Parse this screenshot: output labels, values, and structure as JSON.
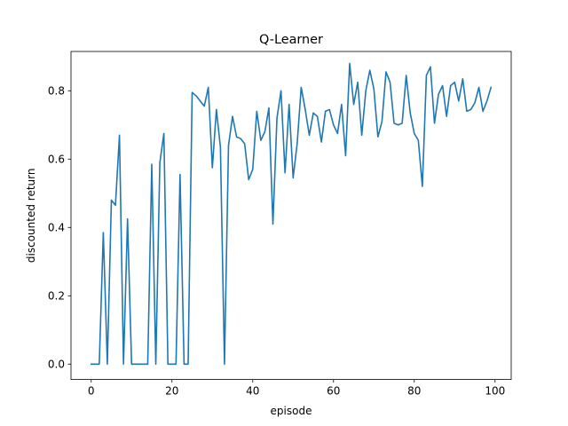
{
  "chart_data": {
    "type": "line",
    "title": "Q-Learner",
    "xlabel": "episode",
    "ylabel": "discounted return",
    "xlim": [
      -5,
      104
    ],
    "ylim": [
      -0.045,
      0.915
    ],
    "xticks": [
      0,
      20,
      40,
      60,
      80,
      100
    ],
    "yticks": [
      0.0,
      0.2,
      0.4,
      0.6,
      0.8
    ],
    "ytick_labels": [
      "0.0",
      "0.2",
      "0.4",
      "0.6",
      "0.8"
    ],
    "grid": false,
    "legend": "none",
    "colors": {
      "series": "#1f77b4"
    },
    "series": [
      {
        "x": [
          0,
          1,
          2,
          3,
          4,
          5,
          6,
          7,
          8,
          9,
          10,
          11,
          12,
          13,
          14,
          15,
          16,
          17,
          18,
          19,
          20,
          21,
          22,
          23,
          24,
          25,
          26,
          27,
          28,
          29,
          30,
          31,
          32,
          33,
          34,
          35,
          36,
          37,
          38,
          39,
          40,
          41,
          42,
          43,
          44,
          45,
          46,
          47,
          48,
          49,
          50,
          51,
          52,
          53,
          54,
          55,
          56,
          57,
          58,
          59,
          60,
          61,
          62,
          63,
          64,
          65,
          66,
          67,
          68,
          69,
          70,
          71,
          72,
          73,
          74,
          75,
          76,
          77,
          78,
          79,
          80,
          81,
          82,
          83,
          84,
          85,
          86,
          87,
          88,
          89,
          90,
          91,
          92,
          93,
          94,
          95,
          96,
          97,
          98,
          99
        ],
        "values": [
          0,
          0,
          0,
          0.385,
          0,
          0.48,
          0.465,
          0.67,
          0,
          0.425,
          0,
          0,
          0,
          0,
          0,
          0.585,
          0,
          0.59,
          0.675,
          0,
          0,
          0,
          0.555,
          0,
          0,
          0.795,
          0.785,
          0.77,
          0.755,
          0.81,
          0.575,
          0.745,
          0.635,
          0,
          0.64,
          0.725,
          0.665,
          0.66,
          0.645,
          0.54,
          0.57,
          0.74,
          0.655,
          0.68,
          0.75,
          0.41,
          0.72,
          0.8,
          0.56,
          0.76,
          0.545,
          0.645,
          0.81,
          0.745,
          0.67,
          0.735,
          0.725,
          0.65,
          0.74,
          0.745,
          0.7,
          0.675,
          0.76,
          0.61,
          0.88,
          0.76,
          0.825,
          0.67,
          0.8,
          0.86,
          0.805,
          0.665,
          0.71,
          0.855,
          0.825,
          0.705,
          0.7,
          0.705,
          0.845,
          0.735,
          0.675,
          0.655,
          0.52,
          0.845,
          0.87,
          0.705,
          0.79,
          0.815,
          0.725,
          0.815,
          0.825,
          0.77,
          0.835,
          0.74,
          0.745,
          0.765,
          0.81,
          0.74,
          0.77,
          0.81
        ]
      }
    ]
  }
}
